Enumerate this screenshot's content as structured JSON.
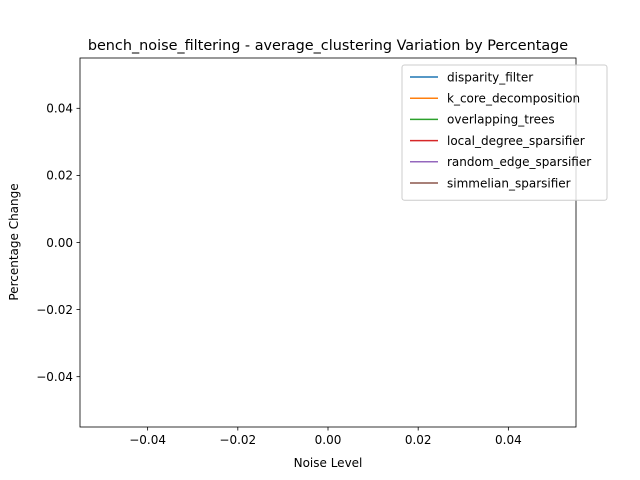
{
  "chart_data": {
    "type": "line",
    "title": "bench_noise_filtering - average_clustering Variation by Percentage",
    "xlabel": "Noise Level",
    "ylabel": "Percentage Change",
    "xlim": [
      -0.055,
      0.055
    ],
    "ylim": [
      -0.055,
      0.055
    ],
    "xticks": [
      -0.04,
      -0.02,
      0.0,
      0.02,
      0.04
    ],
    "xtick_labels": [
      "−0.04",
      "−0.02",
      "0.00",
      "0.02",
      "0.04"
    ],
    "yticks": [
      -0.04,
      -0.02,
      0.0,
      0.02,
      0.04
    ],
    "ytick_labels": [
      "−0.04",
      "−0.02",
      "0.00",
      "0.02",
      "0.04"
    ],
    "grid": false,
    "legend_position": "top-right",
    "series": [
      {
        "name": "disparity_filter",
        "color": "#1f77b4",
        "x": [],
        "y": []
      },
      {
        "name": "k_core_decomposition",
        "color": "#ff7f0e",
        "x": [],
        "y": []
      },
      {
        "name": "overlapping_trees",
        "color": "#2ca02c",
        "x": [],
        "y": []
      },
      {
        "name": "local_degree_sparsifier",
        "color": "#d62728",
        "x": [],
        "y": []
      },
      {
        "name": "random_edge_sparsifier",
        "color": "#9467bd",
        "x": [],
        "y": []
      },
      {
        "name": "simmelian_sparsifier",
        "color": "#8c564b",
        "x": [],
        "y": []
      }
    ]
  }
}
